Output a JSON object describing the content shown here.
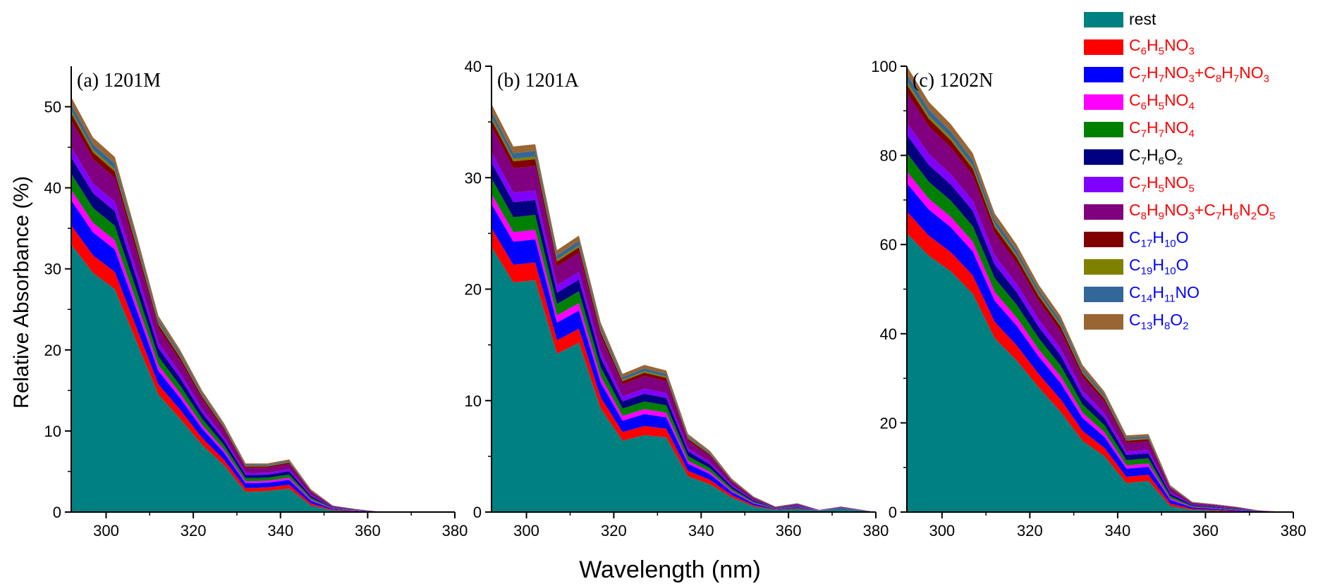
{
  "figure": {
    "xlabel": "Wavelength (nm)",
    "ylabel": "Relative Absorbance (%)"
  },
  "legend": [
    {
      "html": "rest",
      "color": "#008080",
      "text_color": "#000000"
    },
    {
      "html": "C<sub>6</sub>H<sub>5</sub>NO<sub>3</sub>",
      "color": "#ff0000",
      "text_color": "#ff0000"
    },
    {
      "html": "C<sub>7</sub>H<sub>7</sub>NO<sub>3</sub>+C<sub>8</sub>H<sub>7</sub>NO<sub>3</sub>",
      "color": "#0000ff",
      "text_color": "#ff0000"
    },
    {
      "html": "C<sub>6</sub>H<sub>5</sub>NO<sub>4</sub>",
      "color": "#ff00ff",
      "text_color": "#ff0000"
    },
    {
      "html": "C<sub>7</sub>H<sub>7</sub>NO<sub>4</sub>",
      "color": "#008000",
      "text_color": "#ff0000"
    },
    {
      "html": "C<sub>7</sub>H<sub>6</sub>O<sub>2</sub>",
      "color": "#000080",
      "text_color": "#000000"
    },
    {
      "html": "C<sub>7</sub>H<sub>5</sub>NO<sub>5</sub>",
      "color": "#8000ff",
      "text_color": "#ff0000"
    },
    {
      "html": "C<sub>8</sub>H<sub>9</sub>NO<sub>3</sub>+C<sub>7</sub>H<sub>6</sub>N<sub>2</sub>O<sub>5</sub>",
      "color": "#800080",
      "text_color": "#ff0000"
    },
    {
      "html": "C<sub>17</sub>H<sub>10</sub>O",
      "color": "#800000",
      "text_color": "#0000ff"
    },
    {
      "html": "C<sub>19</sub>H<sub>10</sub>O",
      "color": "#808000",
      "text_color": "#0000ff"
    },
    {
      "html": "C<sub>14</sub>H<sub>11</sub>NO",
      "color": "#336699",
      "text_color": "#0000ff"
    },
    {
      "html": "C<sub>13</sub>H<sub>8</sub>O<sub>2</sub>",
      "color": "#996633",
      "text_color": "#0000ff"
    }
  ],
  "chart_data": [
    {
      "type": "area",
      "stacked": true,
      "title": "(a) 1201M",
      "x": [
        292,
        297,
        302,
        307,
        312,
        317,
        322,
        327,
        332,
        337,
        342,
        347,
        352,
        357,
        362,
        367,
        372,
        377,
        380
      ],
      "xlim": [
        292,
        380
      ],
      "ylim": [
        0,
        55
      ],
      "xticks": [
        300,
        320,
        340,
        360,
        380
      ],
      "yticks": [
        0,
        10,
        20,
        30,
        40,
        50
      ],
      "rest": [
        33,
        29.5,
        27.5,
        21,
        14.5,
        11.5,
        8.3,
        5.8,
        2.5,
        2.6,
        2.9,
        0.8,
        0.2,
        0.1,
        0,
        0,
        0,
        0,
        0
      ],
      "total": [
        51.2,
        46.2,
        43.8,
        34.2,
        24.2,
        20.0,
        15.0,
        11.0,
        6.0,
        6.0,
        6.5,
        2.8,
        0.8,
        0.4,
        0.1,
        0.05,
        0,
        0,
        0
      ]
    },
    {
      "type": "area",
      "stacked": true,
      "title": "(b) 1201A",
      "x": [
        292,
        297,
        302,
        307,
        312,
        317,
        322,
        327,
        332,
        337,
        342,
        347,
        352,
        357,
        362,
        367,
        372,
        377,
        380
      ],
      "xlim": [
        292,
        380
      ],
      "ylim": [
        0,
        40
      ],
      "xticks": [
        300,
        320,
        340,
        360,
        380
      ],
      "yticks": [
        0,
        10,
        20,
        30,
        40
      ],
      "rest": [
        23.8,
        20.6,
        20.8,
        14.2,
        15.2,
        9.3,
        6.4,
        6.9,
        6.7,
        3.2,
        2.5,
        1.3,
        0.5,
        0.2,
        0.3,
        0.1,
        0.3,
        0.1,
        0
      ],
      "total": [
        36.6,
        32.8,
        33.0,
        23.5,
        24.8,
        17.0,
        12.4,
        13.2,
        12.7,
        7.0,
        5.5,
        3.0,
        1.4,
        0.5,
        0.8,
        0.2,
        0.5,
        0.2,
        0
      ]
    },
    {
      "type": "area",
      "stacked": true,
      "title": "(c) 1202N",
      "x": [
        292,
        297,
        302,
        307,
        312,
        317,
        322,
        327,
        332,
        337,
        342,
        347,
        352,
        357,
        362,
        367,
        372,
        377,
        380
      ],
      "xlim": [
        292,
        380
      ],
      "ylim": [
        0,
        100
      ],
      "xticks": [
        300,
        320,
        340,
        360,
        380
      ],
      "yticks": [
        0,
        20,
        40,
        60,
        80,
        100
      ],
      "rest": [
        62.5,
        57.5,
        54,
        49,
        39,
        34,
        28,
        22.5,
        16,
        12.5,
        6.5,
        7,
        1.3,
        0.5,
        0.3,
        0.1,
        0,
        0,
        0
      ],
      "total": [
        100,
        92,
        87,
        80.5,
        67,
        60,
        51,
        44,
        33,
        27,
        17.2,
        17.5,
        6,
        2.3,
        1.8,
        1.2,
        0.4,
        0.1,
        0
      ]
    }
  ]
}
